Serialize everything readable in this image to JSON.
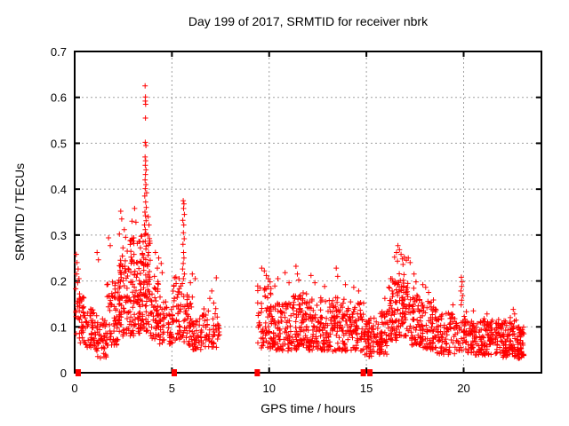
{
  "chart_data": {
    "type": "scatter",
    "title": "Day 199 of 2017, SRMTID for receiver nbrk",
    "xlabel": "GPS time / hours",
    "ylabel": "SRMTID / TECUs",
    "xlim": [
      0,
      24
    ],
    "ylim": [
      0,
      0.7
    ],
    "xticks": [
      0,
      5,
      10,
      15,
      20
    ],
    "xtick_labels": [
      "0",
      "5",
      "10",
      "15",
      "20"
    ],
    "yticks": [
      0,
      0.1,
      0.2,
      0.3,
      0.4,
      0.5,
      0.6,
      0.7
    ],
    "ytick_labels": [
      "0",
      "0.1",
      "0.2",
      "0.3",
      "0.4",
      "0.5",
      "0.6",
      "0.7"
    ],
    "grid": true,
    "grid_color": "#a0a0a0",
    "legend": "none",
    "marker": "plus",
    "marker_color": "#ff0000",
    "zero_marker_shape": "filled-square",
    "zero_marker_x": [
      0.18,
      5.12,
      9.39,
      14.84,
      15.18
    ],
    "data_gaps_hours": [
      [
        7.5,
        9.38
      ],
      [
        23.1,
        24.0
      ]
    ],
    "outlier_points": [
      [
        3.62,
        0.625
      ],
      [
        3.64,
        0.601
      ],
      [
        3.63,
        0.592
      ],
      [
        3.65,
        0.585
      ],
      [
        3.64,
        0.555
      ],
      [
        3.63,
        0.502
      ],
      [
        3.66,
        0.495
      ],
      [
        3.62,
        0.47
      ],
      [
        3.65,
        0.462
      ],
      [
        3.63,
        0.452
      ],
      [
        3.67,
        0.442
      ],
      [
        3.64,
        0.432
      ],
      [
        3.62,
        0.42
      ],
      [
        3.66,
        0.41
      ],
      [
        3.63,
        0.401
      ],
      [
        3.7,
        0.392
      ],
      [
        3.6,
        0.385
      ],
      [
        3.65,
        0.372
      ],
      [
        3.68,
        0.36
      ],
      [
        3.61,
        0.35
      ],
      [
        3.64,
        0.342
      ],
      [
        3.67,
        0.331
      ],
      [
        3.59,
        0.322
      ],
      [
        3.63,
        0.312
      ],
      [
        3.66,
        0.303
      ],
      [
        5.58,
        0.375
      ],
      [
        5.62,
        0.368
      ],
      [
        5.6,
        0.358
      ],
      [
        5.64,
        0.345
      ],
      [
        5.56,
        0.332
      ],
      [
        5.61,
        0.322
      ],
      [
        5.59,
        0.305
      ],
      [
        5.63,
        0.292
      ],
      [
        5.57,
        0.28
      ],
      [
        5.6,
        0.262
      ],
      [
        5.62,
        0.25
      ],
      [
        5.58,
        0.238
      ],
      [
        5.55,
        0.226
      ],
      [
        5.64,
        0.215
      ],
      [
        5.59,
        0.205
      ],
      [
        2.37,
        0.352
      ],
      [
        3.08,
        0.358
      ],
      [
        2.42,
        0.335
      ],
      [
        2.95,
        0.33
      ],
      [
        3.15,
        0.328
      ],
      [
        2.55,
        0.312
      ],
      [
        2.3,
        0.302
      ],
      [
        2.62,
        0.295
      ],
      [
        2.85,
        0.288
      ],
      [
        3.22,
        0.282
      ],
      [
        2.48,
        0.272
      ],
      [
        2.7,
        0.265
      ],
      [
        3.05,
        0.258
      ],
      [
        2.9,
        0.252
      ],
      [
        2.35,
        0.245
      ],
      [
        3.18,
        0.24
      ],
      [
        2.58,
        0.232
      ],
      [
        2.75,
        0.226
      ],
      [
        3.45,
        0.298
      ],
      [
        3.52,
        0.285
      ],
      [
        3.38,
        0.272
      ],
      [
        3.48,
        0.26
      ],
      [
        3.55,
        0.25
      ],
      [
        3.42,
        0.24
      ],
      [
        3.78,
        0.34
      ],
      [
        3.82,
        0.322
      ],
      [
        3.76,
        0.3
      ],
      [
        3.85,
        0.282
      ],
      [
        3.8,
        0.262
      ],
      [
        3.88,
        0.245
      ],
      [
        3.75,
        0.232
      ],
      [
        0.08,
        0.258
      ],
      [
        0.12,
        0.24
      ],
      [
        0.18,
        0.226
      ],
      [
        0.1,
        0.215
      ],
      [
        0.22,
        0.205
      ],
      [
        0.15,
        0.196
      ],
      [
        0.05,
        0.183
      ],
      [
        0.25,
        0.172
      ],
      [
        0.3,
        0.162
      ],
      [
        1.15,
        0.262
      ],
      [
        1.22,
        0.246
      ],
      [
        1.74,
        0.294
      ],
      [
        1.83,
        0.277
      ],
      [
        4.15,
        0.262
      ],
      [
        4.32,
        0.25
      ],
      [
        4.45,
        0.238
      ],
      [
        4.25,
        0.228
      ],
      [
        4.5,
        0.218
      ],
      [
        4.1,
        0.21
      ],
      [
        6.05,
        0.215
      ],
      [
        6.2,
        0.205
      ],
      [
        5.95,
        0.196
      ],
      [
        7.28,
        0.207
      ],
      [
        7.05,
        0.178
      ],
      [
        6.95,
        0.162
      ],
      [
        7.15,
        0.152
      ],
      [
        9.62,
        0.228
      ],
      [
        9.75,
        0.222
      ],
      [
        9.85,
        0.212
      ],
      [
        9.95,
        0.205
      ],
      [
        10.05,
        0.198
      ],
      [
        10.45,
        0.205
      ],
      [
        10.82,
        0.218
      ],
      [
        11.02,
        0.196
      ],
      [
        11.38,
        0.232
      ],
      [
        11.45,
        0.215
      ],
      [
        11.52,
        0.202
      ],
      [
        12.15,
        0.212
      ],
      [
        12.35,
        0.196
      ],
      [
        12.85,
        0.188
      ],
      [
        13.45,
        0.228
      ],
      [
        13.52,
        0.21
      ],
      [
        13.92,
        0.192
      ],
      [
        14.35,
        0.186
      ],
      [
        14.6,
        0.178
      ],
      [
        15.95,
        0.162
      ],
      [
        16.15,
        0.186
      ],
      [
        16.25,
        0.205
      ],
      [
        17.45,
        0.215
      ],
      [
        17.55,
        0.198
      ],
      [
        17.9,
        0.192
      ],
      [
        18.05,
        0.186
      ],
      [
        18.2,
        0.175
      ],
      [
        19.45,
        0.148
      ],
      [
        20.5,
        0.135
      ],
      [
        21.2,
        0.128
      ],
      [
        22.55,
        0.138
      ],
      [
        22.62,
        0.128
      ],
      [
        22.4,
        0.12
      ],
      [
        16.45,
        0.252
      ],
      [
        16.55,
        0.262
      ],
      [
        16.62,
        0.277
      ],
      [
        16.7,
        0.268
      ],
      [
        16.78,
        0.258
      ],
      [
        16.85,
        0.248
      ],
      [
        16.6,
        0.243
      ],
      [
        16.95,
        0.252
      ],
      [
        17.05,
        0.245
      ],
      [
        17.15,
        0.25
      ],
      [
        16.88,
        0.236
      ],
      [
        17.25,
        0.24
      ],
      [
        19.88,
        0.208
      ],
      [
        19.92,
        0.198
      ],
      [
        19.9,
        0.188
      ],
      [
        19.86,
        0.178
      ],
      [
        19.94,
        0.168
      ],
      [
        19.9,
        0.158
      ],
      [
        19.87,
        0.148
      ]
    ],
    "noise_bands": [
      {
        "x0": 0.05,
        "x1": 0.5,
        "ylo": 0.065,
        "yhi": 0.165,
        "n": 42,
        "bias": 1.2
      },
      {
        "x0": 0.5,
        "x1": 1.05,
        "ylo": 0.055,
        "yhi": 0.14,
        "n": 48,
        "bias": 1.2
      },
      {
        "x0": 1.05,
        "x1": 1.65,
        "ylo": 0.03,
        "yhi": 0.125,
        "n": 52,
        "bias": 1.1
      },
      {
        "x0": 1.65,
        "x1": 2.25,
        "ylo": 0.06,
        "yhi": 0.2,
        "n": 60,
        "bias": 1.3
      },
      {
        "x0": 2.25,
        "x1": 2.8,
        "ylo": 0.08,
        "yhi": 0.26,
        "n": 72,
        "bias": 1.4
      },
      {
        "x0": 2.8,
        "x1": 3.35,
        "ylo": 0.08,
        "yhi": 0.3,
        "n": 78,
        "bias": 1.5
      },
      {
        "x0": 3.35,
        "x1": 3.6,
        "ylo": 0.095,
        "yhi": 0.3,
        "n": 40,
        "bias": 1.3
      },
      {
        "x0": 3.6,
        "x1": 3.9,
        "ylo": 0.09,
        "yhi": 0.31,
        "n": 45,
        "bias": 1.3
      },
      {
        "x0": 3.9,
        "x1": 4.35,
        "ylo": 0.07,
        "yhi": 0.2,
        "n": 50,
        "bias": 1.3
      },
      {
        "x0": 4.35,
        "x1": 5.05,
        "ylo": 0.06,
        "yhi": 0.165,
        "n": 55,
        "bias": 1.2
      },
      {
        "x0": 5.05,
        "x1": 5.55,
        "ylo": 0.07,
        "yhi": 0.21,
        "n": 45,
        "bias": 1.3
      },
      {
        "x0": 5.55,
        "x1": 6.05,
        "ylo": 0.06,
        "yhi": 0.17,
        "n": 46,
        "bias": 1.2
      },
      {
        "x0": 6.05,
        "x1": 6.55,
        "ylo": 0.05,
        "yhi": 0.125,
        "n": 40,
        "bias": 1.1
      },
      {
        "x0": 6.55,
        "x1": 7.45,
        "ylo": 0.055,
        "yhi": 0.14,
        "n": 56,
        "bias": 1.2
      },
      {
        "x0": 9.4,
        "x1": 10.3,
        "ylo": 0.05,
        "yhi": 0.19,
        "n": 85,
        "bias": 1.3
      },
      {
        "x0": 10.3,
        "x1": 11.2,
        "ylo": 0.048,
        "yhi": 0.155,
        "n": 85,
        "bias": 1.2
      },
      {
        "x0": 11.2,
        "x1": 12.0,
        "ylo": 0.05,
        "yhi": 0.175,
        "n": 88,
        "bias": 1.3
      },
      {
        "x0": 12.0,
        "x1": 13.0,
        "ylo": 0.048,
        "yhi": 0.165,
        "n": 95,
        "bias": 1.3
      },
      {
        "x0": 13.0,
        "x1": 14.0,
        "ylo": 0.045,
        "yhi": 0.165,
        "n": 95,
        "bias": 1.3
      },
      {
        "x0": 14.0,
        "x1": 14.9,
        "ylo": 0.048,
        "yhi": 0.155,
        "n": 80,
        "bias": 1.2
      },
      {
        "x0": 14.9,
        "x1": 15.55,
        "ylo": 0.032,
        "yhi": 0.12,
        "n": 60,
        "bias": 1.1
      },
      {
        "x0": 15.55,
        "x1": 16.1,
        "ylo": 0.04,
        "yhi": 0.135,
        "n": 58,
        "bias": 1.2
      },
      {
        "x0": 16.1,
        "x1": 16.65,
        "ylo": 0.07,
        "yhi": 0.21,
        "n": 62,
        "bias": 1.3
      },
      {
        "x0": 16.65,
        "x1": 17.15,
        "ylo": 0.08,
        "yhi": 0.23,
        "n": 62,
        "bias": 1.3
      },
      {
        "x0": 17.15,
        "x1": 17.85,
        "ylo": 0.06,
        "yhi": 0.185,
        "n": 66,
        "bias": 1.3
      },
      {
        "x0": 17.85,
        "x1": 18.6,
        "ylo": 0.05,
        "yhi": 0.16,
        "n": 70,
        "bias": 1.3
      },
      {
        "x0": 18.6,
        "x1": 19.6,
        "ylo": 0.04,
        "yhi": 0.13,
        "n": 76,
        "bias": 1.2
      },
      {
        "x0": 19.6,
        "x1": 20.15,
        "ylo": 0.048,
        "yhi": 0.145,
        "n": 42,
        "bias": 1.2
      },
      {
        "x0": 20.15,
        "x1": 21.05,
        "ylo": 0.038,
        "yhi": 0.115,
        "n": 80,
        "bias": 1.2
      },
      {
        "x0": 21.05,
        "x1": 21.95,
        "ylo": 0.038,
        "yhi": 0.12,
        "n": 84,
        "bias": 1.2
      },
      {
        "x0": 21.95,
        "x1": 22.7,
        "ylo": 0.033,
        "yhi": 0.115,
        "n": 80,
        "bias": 1.2
      },
      {
        "x0": 22.7,
        "x1": 23.1,
        "ylo": 0.03,
        "yhi": 0.1,
        "n": 55,
        "bias": 1.1
      }
    ]
  }
}
